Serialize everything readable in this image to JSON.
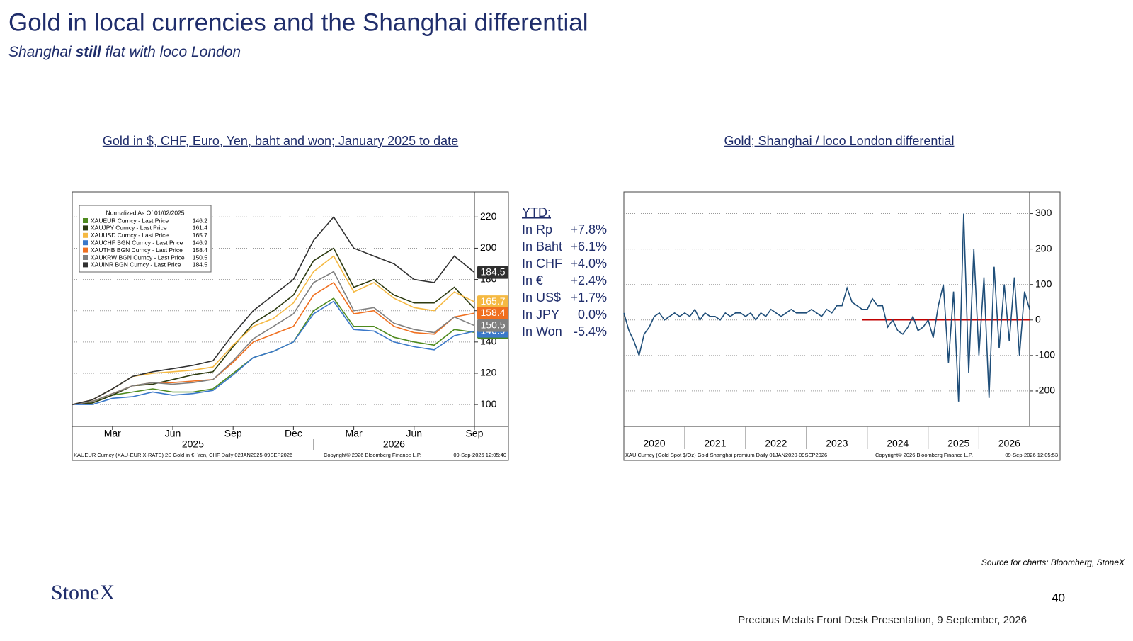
{
  "slide": {
    "title": "Gold in local currencies and the Shanghai differential",
    "subtitle": [
      "Shanghai ",
      "still",
      " flat with loco London"
    ],
    "ytd": {
      "title": "YTD:",
      "rows": [
        {
          "label": "In Rp",
          "value": "+7.8%"
        },
        {
          "label": "In Baht",
          "value": "+6.1%"
        },
        {
          "label": "In CHF",
          "value": "+4.0%"
        },
        {
          "label": "In €",
          "value": "+2.4%"
        },
        {
          "label": "In  US$",
          "value": "+1.7%"
        },
        {
          "label": "In JPY",
          "value": "0.0%"
        },
        {
          "label": "In Won",
          "value": "-5.4%"
        }
      ]
    },
    "source": "Source for charts: Bloomberg, StoneX",
    "logo": "StoneX",
    "page": "40",
    "footer": "Precious Metals Front Desk Presentation, 9 September, 2026"
  },
  "chart_data": [
    {
      "type": "line",
      "title": "Gold in $, CHF, Euro, Yen, baht and won; January 2025 to date",
      "legend_title": "Normalized As Of 01/02/2025",
      "x": [
        "2025-01",
        "2025-02",
        "2025-03",
        "2025-04",
        "2025-05",
        "2025-06",
        "2025-07",
        "2025-08",
        "2025-09",
        "2025-10",
        "2025-11",
        "2025-12",
        "2026-01",
        "2026-02",
        "2026-03",
        "2026-04",
        "2026-05",
        "2026-06",
        "2026-07",
        "2026-08",
        "2026-09"
      ],
      "xlim": [
        "2025-01",
        "2026-09"
      ],
      "xticks": [
        {
          "value": "2025-03",
          "label": "Mar"
        },
        {
          "value": "2025-06",
          "label": "Jun"
        },
        {
          "value": "2025-09",
          "label": "Sep"
        },
        {
          "value": "2025-12",
          "label": "Dec"
        },
        {
          "value": "2026-03",
          "label": "Mar"
        },
        {
          "value": "2026-06",
          "label": "Jun"
        },
        {
          "value": "2026-09",
          "label": "Sep"
        }
      ],
      "x_group_labels": [
        {
          "value": "2025-07",
          "label": "2025"
        },
        {
          "value": "2026-05",
          "label": "2026"
        }
      ],
      "ylim": [
        86,
        236
      ],
      "yticks": [
        100,
        120,
        140,
        160,
        180,
        200,
        220
      ],
      "grid": true,
      "series": [
        {
          "name": "XAUEUR Curncy - Last Price",
          "color": "#4e8a1e",
          "values": [
            100,
            101,
            106,
            108,
            110,
            108,
            108,
            110,
            120,
            130,
            134,
            140,
            160,
            168,
            150,
            150,
            143,
            140,
            138,
            148,
            146.2
          ]
        },
        {
          "name": "XAUJPY Curncy - Last Price",
          "color": "#2c3a10",
          "values": [
            100,
            101,
            106,
            112,
            113,
            116,
            119,
            121,
            137,
            152,
            160,
            170,
            192,
            200,
            175,
            180,
            170,
            165,
            165,
            175,
            161.4
          ]
        },
        {
          "name": "XAUUSD Curncy - Last Price",
          "color": "#f5b942",
          "values": [
            100,
            103,
            110,
            118,
            120,
            121,
            122,
            124,
            138,
            150,
            155,
            165,
            185,
            195,
            172,
            178,
            168,
            162,
            160,
            172,
            165.7
          ]
        },
        {
          "name": "XAUCHF BGN Curncy - Last Price",
          "color": "#3a78c9",
          "values": [
            100,
            100,
            104,
            105,
            108,
            106,
            107,
            109,
            119,
            130,
            134,
            140,
            158,
            166,
            148,
            147,
            140,
            137,
            135,
            144,
            146.9
          ]
        },
        {
          "name": "XAUTHB BGN Curncy - Last Price",
          "color": "#f07020",
          "values": [
            100,
            102,
            107,
            112,
            114,
            114,
            115,
            116,
            127,
            140,
            145,
            150,
            170,
            178,
            158,
            160,
            150,
            146,
            145,
            156,
            158.4
          ]
        },
        {
          "name": "XAUKRW BGN Curncy - Last Price",
          "color": "#808080",
          "values": [
            100,
            102,
            107,
            112,
            114,
            113,
            114,
            116,
            128,
            142,
            150,
            158,
            178,
            185,
            160,
            162,
            152,
            148,
            146,
            156,
            150.5
          ]
        },
        {
          "name": "XAUINR BGN Curncy - Last Price",
          "color": "#303030",
          "values": [
            100,
            103,
            110,
            118,
            121,
            123,
            125,
            128,
            145,
            160,
            170,
            180,
            205,
            220,
            200,
            195,
            190,
            180,
            178,
            195,
            184.5
          ]
        }
      ],
      "footnote": [
        "XAUEUR Curncy (XAU-EUR X-RATE) 2S Gold in €, Yen, CHF Daily 02JAN2025-09SEP2026",
        "Copyright© 2026 Bloomberg Finance L.P.",
        "09-Sep-2026 12:05:40"
      ]
    },
    {
      "type": "line",
      "title": "Gold; Shanghai / loco London differential",
      "x": [
        "2020-01",
        "2020-02",
        "2020-03",
        "2020-04",
        "2020-05",
        "2020-06",
        "2020-07",
        "2020-08",
        "2020-09",
        "2020-10",
        "2020-11",
        "2020-12",
        "2021-01",
        "2021-02",
        "2021-03",
        "2021-04",
        "2021-05",
        "2021-06",
        "2021-07",
        "2021-08",
        "2021-09",
        "2021-10",
        "2021-11",
        "2021-12",
        "2022-01",
        "2022-02",
        "2022-03",
        "2022-04",
        "2022-05",
        "2022-06",
        "2022-07",
        "2022-08",
        "2022-09",
        "2022-10",
        "2022-11",
        "2022-12",
        "2023-01",
        "2023-02",
        "2023-03",
        "2023-04",
        "2023-05",
        "2023-06",
        "2023-07",
        "2023-08",
        "2023-09",
        "2023-10",
        "2023-11",
        "2023-12",
        "2024-01",
        "2024-02",
        "2024-03",
        "2024-04",
        "2024-05",
        "2024-06",
        "2024-07",
        "2024-08",
        "2024-09",
        "2024-10",
        "2024-11",
        "2024-12",
        "2025-01",
        "2025-02",
        "2025-03",
        "2025-04",
        "2025-05",
        "2025-06",
        "2025-07",
        "2025-08",
        "2025-09",
        "2025-10",
        "2025-11",
        "2025-12",
        "2026-01",
        "2026-02",
        "2026-03",
        "2026-04",
        "2026-05",
        "2026-06",
        "2026-07",
        "2026-08",
        "2026-09"
      ],
      "values": [
        20,
        -30,
        -60,
        -100,
        -40,
        -20,
        10,
        20,
        0,
        10,
        20,
        10,
        20,
        10,
        30,
        0,
        20,
        10,
        10,
        0,
        20,
        10,
        20,
        20,
        10,
        20,
        0,
        20,
        10,
        30,
        20,
        10,
        20,
        30,
        20,
        20,
        20,
        30,
        20,
        10,
        30,
        20,
        40,
        40,
        90,
        50,
        40,
        30,
        30,
        60,
        40,
        40,
        -20,
        0,
        -30,
        -40,
        -20,
        10,
        -30,
        -20,
        0,
        -50,
        40,
        100,
        -120,
        80,
        -230,
        300,
        -150,
        200,
        -100,
        120,
        -220,
        150,
        -80,
        100,
        -60,
        120,
        -100,
        80,
        30
      ],
      "color": "#1f4e79",
      "xlim": [
        "2020-01",
        "2026-09"
      ],
      "xticks": [
        {
          "value": "2020-07",
          "label": "2020"
        },
        {
          "value": "2021-07",
          "label": "2021"
        },
        {
          "value": "2022-07",
          "label": "2022"
        },
        {
          "value": "2023-07",
          "label": "2023"
        },
        {
          "value": "2024-07",
          "label": "2024"
        },
        {
          "value": "2025-07",
          "label": "2025"
        },
        {
          "value": "2026-05",
          "label": "2026"
        }
      ],
      "ylim": [
        -300,
        361
      ],
      "yticks": [
        -200,
        -100,
        0,
        100,
        200,
        300
      ],
      "grid": true,
      "zero_line": {
        "value": 0,
        "color": "#c00000",
        "start": "2023-12"
      },
      "footnote": [
        "XAU Curncy (Gold Spot  $/Oz) Gold Shanghai premium Daily 01JAN2020-09SEP2026",
        "Copyright© 2026 Bloomberg Finance L.P.",
        "09-Sep-2026 12:05:53"
      ]
    }
  ]
}
